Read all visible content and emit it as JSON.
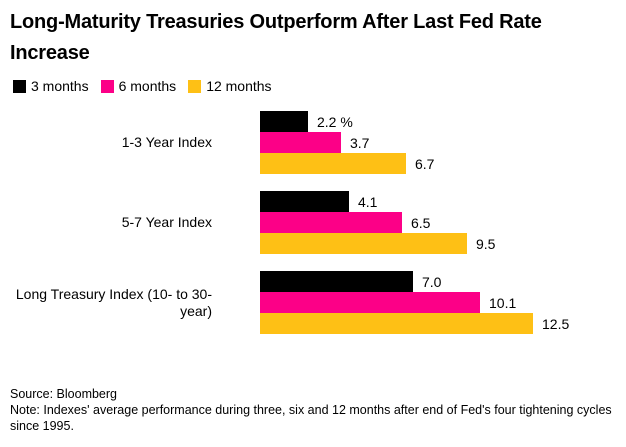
{
  "title": "Long-Maturity Treasuries Outperform After Last Fed Rate Increase",
  "colors": {
    "series_black": "#000000",
    "series_pink": "#fc0087",
    "series_gold": "#fec015",
    "background": "#ffffff",
    "text": "#000000"
  },
  "chart_data": {
    "type": "bar",
    "orientation": "horizontal",
    "title": "Long-Maturity Treasuries Outperform After Last Fed Rate Increase",
    "categories": [
      "1-3 Year Index",
      "5-7 Year Index",
      "Long Treasury Index (10- to 30-year)"
    ],
    "series": [
      {
        "name": "3 months",
        "color": "#000000",
        "values": [
          2.2,
          4.1,
          7.0
        ]
      },
      {
        "name": "6 months",
        "color": "#fc0087",
        "values": [
          3.7,
          6.5,
          10.1
        ]
      },
      {
        "name": "12 months",
        "color": "#fec015",
        "values": [
          6.7,
          9.5,
          12.5
        ]
      }
    ],
    "value_labels": [
      [
        "2.2 %",
        "3.7",
        "6.7"
      ],
      [
        "4.1",
        "6.5",
        "9.5"
      ],
      [
        "7.0",
        "10.1",
        "12.5"
      ]
    ],
    "unit": "%",
    "legend_position": "top",
    "grid": false,
    "xlim": [
      0,
      13
    ]
  },
  "footer": {
    "source": "Source: Bloomberg",
    "note": "Note: Indexes' average performance during three, six and 12 months after end of Fed's four tightening cycles since 1995."
  }
}
